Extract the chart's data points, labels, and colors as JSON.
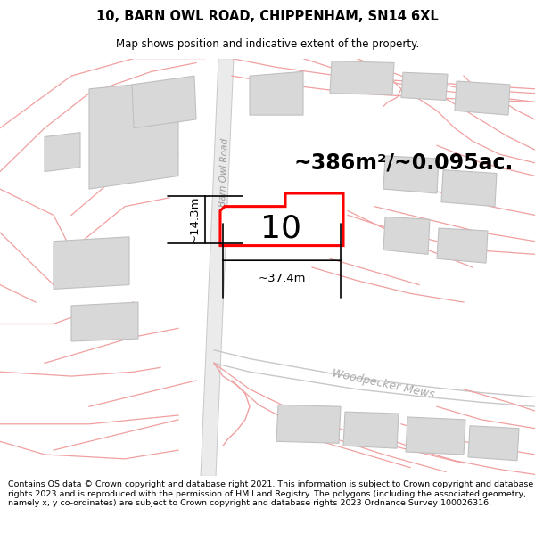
{
  "title_line1": "10, BARN OWL ROAD, CHIPPENHAM, SN14 6XL",
  "title_line2": "Map shows position and indicative extent of the property.",
  "footer_text": "Contains OS data © Crown copyright and database right 2021. This information is subject to Crown copyright and database rights 2023 and is reproduced with the permission of HM Land Registry. The polygons (including the associated geometry, namely x, y co-ordinates) are subject to Crown copyright and database rights 2023 Ordnance Survey 100026316.",
  "area_label": "~386m²/~0.095ac.",
  "number_label": "10",
  "width_label": "~37.4m",
  "height_label": "~14.3m",
  "road_label": "Barn Owl Road",
  "street_label": "Woodpecker Mews",
  "bg_color": "#ffffff",
  "map_bg": "#f7f7f7",
  "road_fill": "#ebebeb",
  "plot_fill": "#ffffff",
  "plot_outline": "#ff0000",
  "building_fill": "#d8d8d8",
  "building_edge": "#c0c0c0",
  "road_line_color": "#f0a0a0",
  "road_line_color2": "#c8c8c8",
  "dim_line_color": "#000000",
  "title_fontsize": 10.5,
  "subtitle_fontsize": 8.5,
  "footer_fontsize": 6.8,
  "area_fontsize": 17,
  "number_fontsize": 26,
  "dim_fontsize": 9.5
}
